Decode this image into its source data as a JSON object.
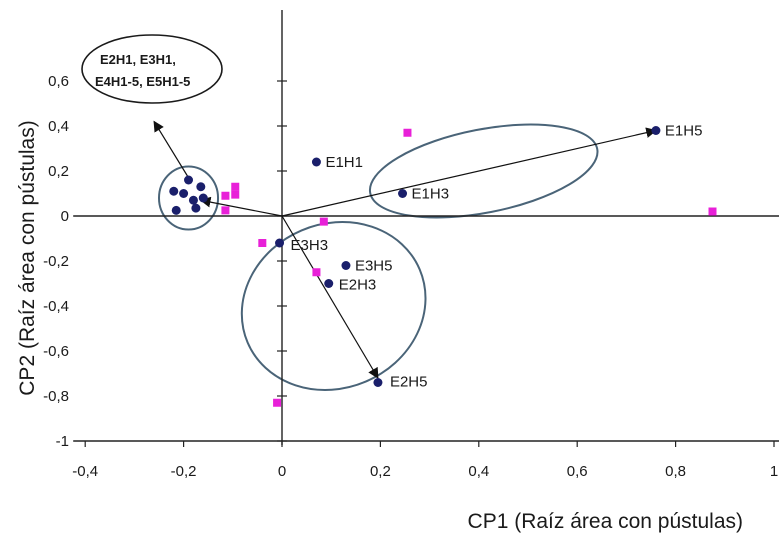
{
  "chart_data": {
    "type": "scatter",
    "title": "",
    "xlabel": "CP1 (Raíz área con pústulas)",
    "ylabel": "CP2 (Raíz área con pústulas)",
    "xlim": [
      -0.4,
      1.0
    ],
    "ylim": [
      -1.0,
      0.7
    ],
    "x_ticks": [
      "-0,4",
      "-0,2",
      "0",
      "0,2",
      "0,4",
      "0,6",
      "0,8",
      "1"
    ],
    "y_ticks": [
      "0,6",
      "0,4",
      "0,2",
      "0",
      "-0,2",
      "-0,4",
      "-0,6",
      "-0,8",
      "-1"
    ],
    "grid": false,
    "colors": {
      "treatments": "#1a1f6b",
      "variables": "#e820d8",
      "ellipse": "#4a6478",
      "axis": "#222222"
    },
    "series": [
      {
        "marker": "circle",
        "points": [
          {
            "x": 0.07,
            "y": 0.24,
            "label": "E1H1"
          },
          {
            "x": 0.245,
            "y": 0.1,
            "label": "E1H3"
          },
          {
            "x": 0.76,
            "y": 0.38,
            "label": "E1H5"
          },
          {
            "x": -0.005,
            "y": -0.12,
            "label": "E3H3"
          },
          {
            "x": 0.13,
            "y": -0.22,
            "label": "E3H5"
          },
          {
            "x": 0.095,
            "y": -0.3,
            "label": "E2H3"
          },
          {
            "x": 0.195,
            "y": -0.74,
            "label": "E2H5"
          },
          {
            "x": -0.22,
            "y": 0.11,
            "label": ""
          },
          {
            "x": -0.2,
            "y": 0.1,
            "label": ""
          },
          {
            "x": -0.19,
            "y": 0.16,
            "label": ""
          },
          {
            "x": -0.165,
            "y": 0.13,
            "label": ""
          },
          {
            "x": -0.16,
            "y": 0.08,
            "label": ""
          },
          {
            "x": -0.18,
            "y": 0.07,
            "label": ""
          },
          {
            "x": -0.215,
            "y": 0.025,
            "label": ""
          },
          {
            "x": -0.175,
            "y": 0.035,
            "label": ""
          }
        ]
      },
      {
        "marker": "square",
        "points": [
          {
            "x": 0.255,
            "y": 0.37
          },
          {
            "x": 0.875,
            "y": 0.02
          },
          {
            "x": -0.115,
            "y": 0.09
          },
          {
            "x": -0.095,
            "y": 0.13
          },
          {
            "x": -0.095,
            "y": 0.095
          },
          {
            "x": -0.115,
            "y": 0.025
          },
          {
            "x": 0.085,
            "y": -0.025
          },
          {
            "x": -0.04,
            "y": -0.12
          },
          {
            "x": 0.07,
            "y": -0.25
          },
          {
            "x": -0.01,
            "y": -0.83
          }
        ]
      }
    ],
    "vectors": [
      {
        "from": [
          0,
          0
        ],
        "to": [
          0.76,
          0.38
        ]
      },
      {
        "from": [
          0,
          0
        ],
        "to": [
          0.195,
          -0.72
        ]
      },
      {
        "from": [
          0,
          0
        ],
        "to": [
          -0.165,
          0.07
        ]
      }
    ],
    "callout": {
      "lines": [
        "E2H1, E3H1,",
        "E4H1-5, E5H1-5"
      ],
      "arrow_to": [
        -0.26,
        0.42
      ]
    },
    "groups": [
      {
        "members": [
          "E1H1",
          "E1H3",
          "E1H5"
        ],
        "center": [
          0.41,
          0.2
        ],
        "rx": 0.235,
        "ry": 0.185,
        "angle_deg": -11
      },
      {
        "members": [
          "E3H3",
          "E3H5",
          "E2H3",
          "E2H5"
        ],
        "center": [
          0.105,
          -0.4
        ],
        "rx": 0.19,
        "ry": 0.365,
        "angle_deg": -23
      },
      {
        "members": [
          "E2H1",
          "E3H1",
          "E4H1-5",
          "E5H1-5"
        ],
        "center": [
          -0.19,
          0.08
        ],
        "rx": 0.06,
        "ry": 0.14,
        "angle_deg": 0
      }
    ]
  }
}
